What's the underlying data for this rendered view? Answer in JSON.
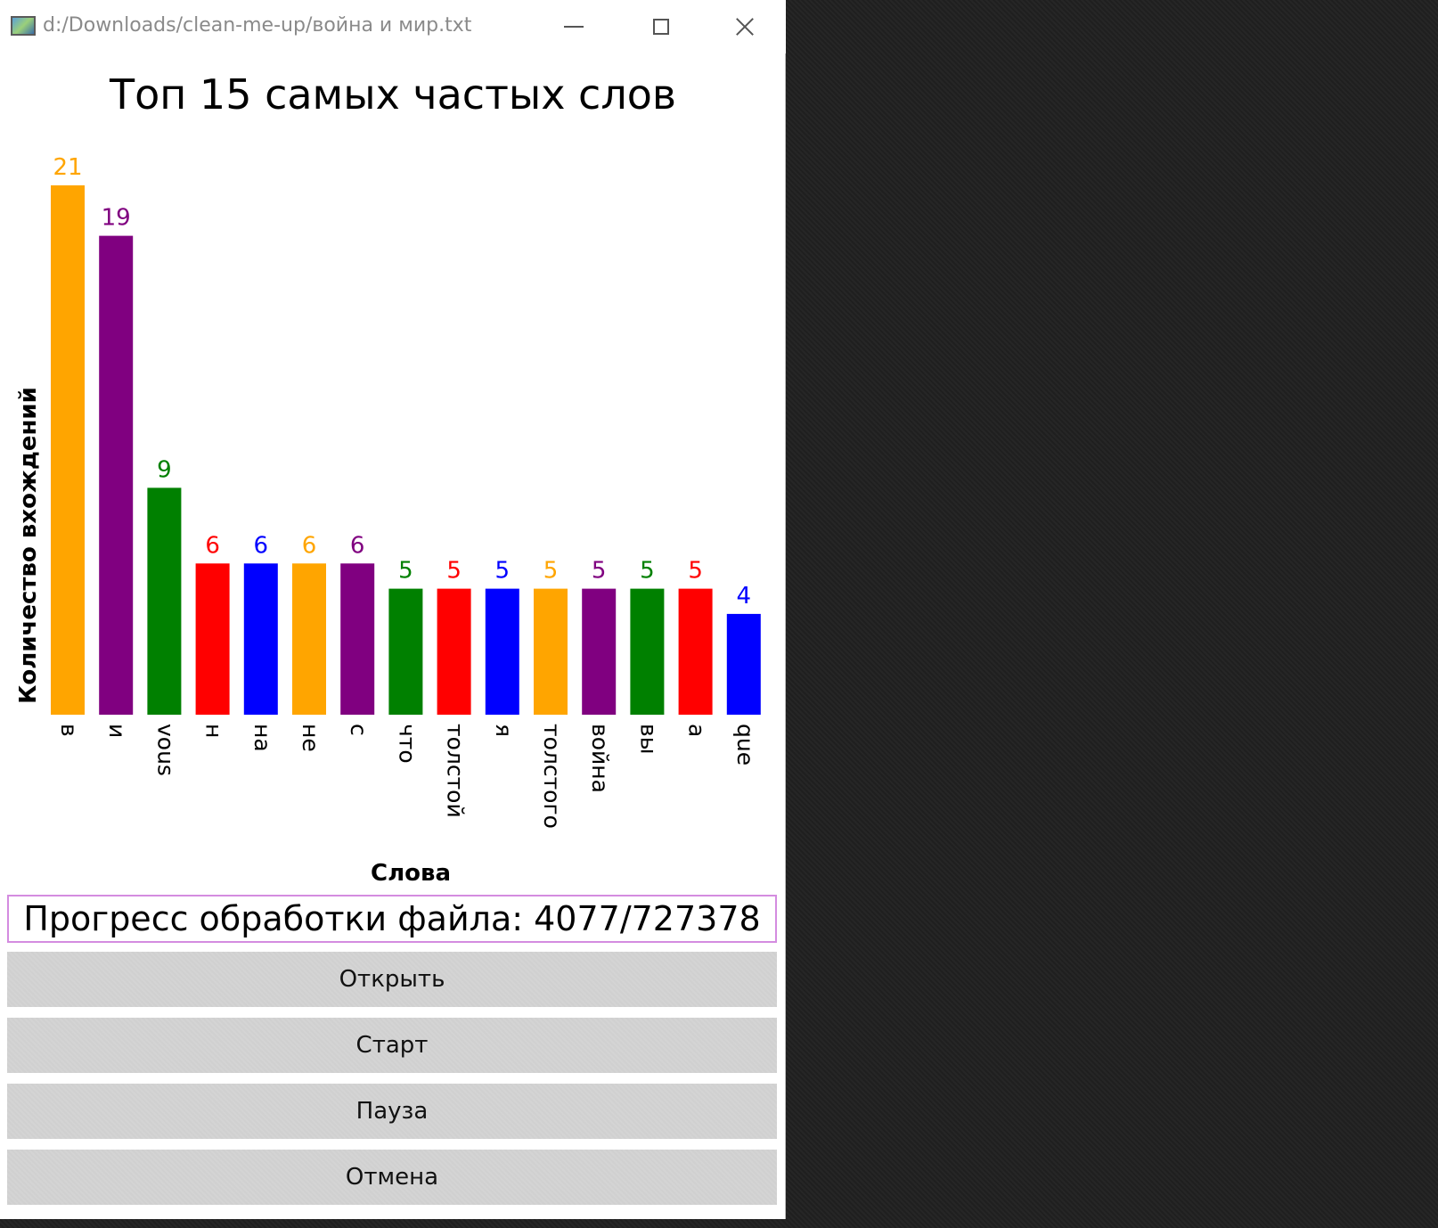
{
  "window": {
    "title": "d:/Downloads/clean-me-up/война и мир.txt",
    "icon": "app-icon",
    "controls": [
      "minimize-icon",
      "maximize-icon",
      "close-icon"
    ]
  },
  "chart_data": {
    "type": "bar",
    "title": "Топ 15 самых частых слов",
    "xlabel": "Слова",
    "ylabel": "Количество вхождений",
    "categories": [
      "в",
      "и",
      "vous",
      "н",
      "на",
      "не",
      "с",
      "что",
      "толстой",
      "я",
      "толстого",
      "война",
      "вы",
      "а",
      "que"
    ],
    "values": [
      21,
      19,
      9,
      6,
      6,
      6,
      6,
      5,
      5,
      5,
      5,
      5,
      5,
      5,
      4
    ],
    "colors": [
      "#FFA500",
      "#800080",
      "#008000",
      "#FF0000",
      "#0000FF",
      "#FFA500",
      "#800080",
      "#008000",
      "#FF0000",
      "#0000FF",
      "#FFA500",
      "#800080",
      "#008000",
      "#FF0000",
      "#0000FF"
    ],
    "ylim": [
      0,
      21
    ],
    "grid": false,
    "legend": "none"
  },
  "progress": {
    "text": "Прогресс обработки файла: 4077/727378",
    "current": 4077,
    "total": 727378,
    "border_color": "#d48ce0"
  },
  "buttons": {
    "open": "Открыть",
    "start": "Старт",
    "pause": "Пауза",
    "cancel": "Отмена"
  }
}
